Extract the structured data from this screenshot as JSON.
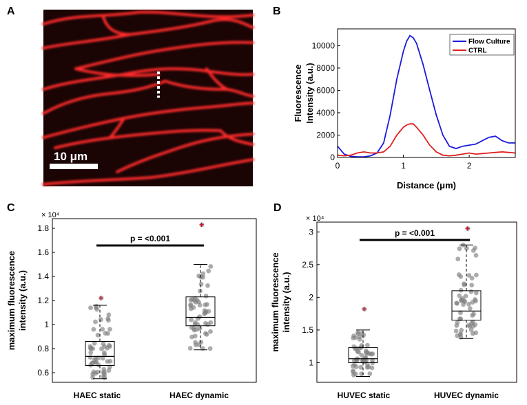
{
  "colors": {
    "flow": "#1a1adb",
    "ctrl": "#e01f1f",
    "dots": "#7f7f7f",
    "outlier": "#d01030",
    "micro_bg": "#1a0404",
    "micro_cell": "#ff2a2a"
  },
  "panels": {
    "A": {
      "letter": "A",
      "scale_label": "10 μm"
    },
    "B": {
      "letter": "B"
    },
    "C": {
      "letter": "C"
    },
    "D": {
      "letter": "D"
    }
  },
  "chart_data": [
    {
      "id": "B",
      "type": "line",
      "xlabel": "Distance (μm)",
      "ylabel": "Fluorescence Intensity (a.u.)",
      "ylabel_lines": [
        "Fluorescence",
        "Intensity (a.u.)"
      ],
      "xlim": [
        0,
        2.7
      ],
      "ylim": [
        0,
        11500
      ],
      "xticks": [
        0,
        1,
        2
      ],
      "xtick_labels": [
        "0",
        "1",
        "2"
      ],
      "yticks": [
        0,
        2000,
        4000,
        6000,
        8000,
        10000
      ],
      "ytick_labels": [
        "0",
        "2000",
        "4000",
        "6000",
        "8000",
        "10000"
      ],
      "legend_position": "top-right",
      "series": [
        {
          "name": "Flow Culture",
          "color": "#1a1adb",
          "x": [
            0,
            0.1,
            0.2,
            0.3,
            0.4,
            0.5,
            0.6,
            0.7,
            0.8,
            0.9,
            1.0,
            1.05,
            1.1,
            1.15,
            1.2,
            1.3,
            1.4,
            1.5,
            1.6,
            1.7,
            1.8,
            1.9,
            2.0,
            2.1,
            2.2,
            2.3,
            2.4,
            2.5,
            2.6,
            2.7
          ],
          "y": [
            1000,
            300,
            100,
            50,
            50,
            150,
            400,
            1300,
            3800,
            7000,
            9500,
            10400,
            10900,
            10700,
            10200,
            8300,
            6000,
            3800,
            2000,
            1000,
            800,
            1000,
            1100,
            1200,
            1500,
            1800,
            1900,
            1500,
            1300,
            1300
          ]
        },
        {
          "name": "CTRL",
          "color": "#e01f1f",
          "x": [
            0,
            0.1,
            0.2,
            0.3,
            0.4,
            0.5,
            0.6,
            0.7,
            0.8,
            0.9,
            1.0,
            1.05,
            1.1,
            1.15,
            1.2,
            1.3,
            1.4,
            1.5,
            1.6,
            1.7,
            1.8,
            1.9,
            2.0,
            2.1,
            2.2,
            2.3,
            2.4,
            2.5,
            2.6,
            2.7
          ],
          "y": [
            200,
            150,
            200,
            400,
            500,
            400,
            400,
            500,
            1000,
            2000,
            2700,
            2900,
            3000,
            3000,
            2700,
            2000,
            1100,
            500,
            200,
            150,
            200,
            300,
            400,
            300,
            350,
            400,
            450,
            500,
            450,
            400
          ]
        }
      ]
    },
    {
      "id": "C",
      "type": "box",
      "ylabel": "maximum fluorescence intensity (a.u.)",
      "ylabel_lines": [
        "maximum fluorescence",
        "intensity (a.u.)"
      ],
      "exponent_label": "× 10⁴",
      "ylim": [
        0.52,
        1.88
      ],
      "yticks": [
        0.6,
        0.8,
        1.0,
        1.2,
        1.4,
        1.6,
        1.8
      ],
      "ytick_labels": [
        "0.6",
        "0.8",
        "1",
        "1.2",
        "1.4",
        "1.6",
        "1.8"
      ],
      "categories": [
        "HAEC static",
        "HAEC dynamic"
      ],
      "significance": "p = <0.001",
      "boxes": [
        {
          "q1": 0.66,
          "median": 0.735,
          "q3": 0.86,
          "whisker_low": 0.55,
          "whisker_high": 1.16,
          "outliers": [
            1.22
          ]
        },
        {
          "q1": 0.99,
          "median": 1.06,
          "q3": 1.23,
          "whisker_low": 0.79,
          "whisker_high": 1.5,
          "outliers": [
            1.83
          ]
        }
      ]
    },
    {
      "id": "D",
      "type": "box",
      "ylabel": "maximum fluorescence intensity (a.u.)",
      "ylabel_lines": [
        "maximum fluorescence",
        "intensity (a.u.)"
      ],
      "exponent_label": "× 10⁴",
      "ylim": [
        0.7,
        3.15
      ],
      "yticks": [
        1.0,
        1.5,
        2.0,
        2.5,
        3.0
      ],
      "ytick_labels": [
        "1",
        "1.5",
        "2",
        "2.5",
        "3"
      ],
      "categories": [
        "HUVEC static",
        "HUVEC dynamic"
      ],
      "significance": "p = <0.001",
      "boxes": [
        {
          "q1": 1.0,
          "median": 1.06,
          "q3": 1.23,
          "whisker_low": 0.79,
          "whisker_high": 1.5,
          "outliers": [
            1.82
          ]
        },
        {
          "q1": 1.65,
          "median": 1.79,
          "q3": 2.1,
          "whisker_low": 1.37,
          "whisker_high": 2.8,
          "outliers": [
            3.05
          ]
        }
      ]
    }
  ]
}
